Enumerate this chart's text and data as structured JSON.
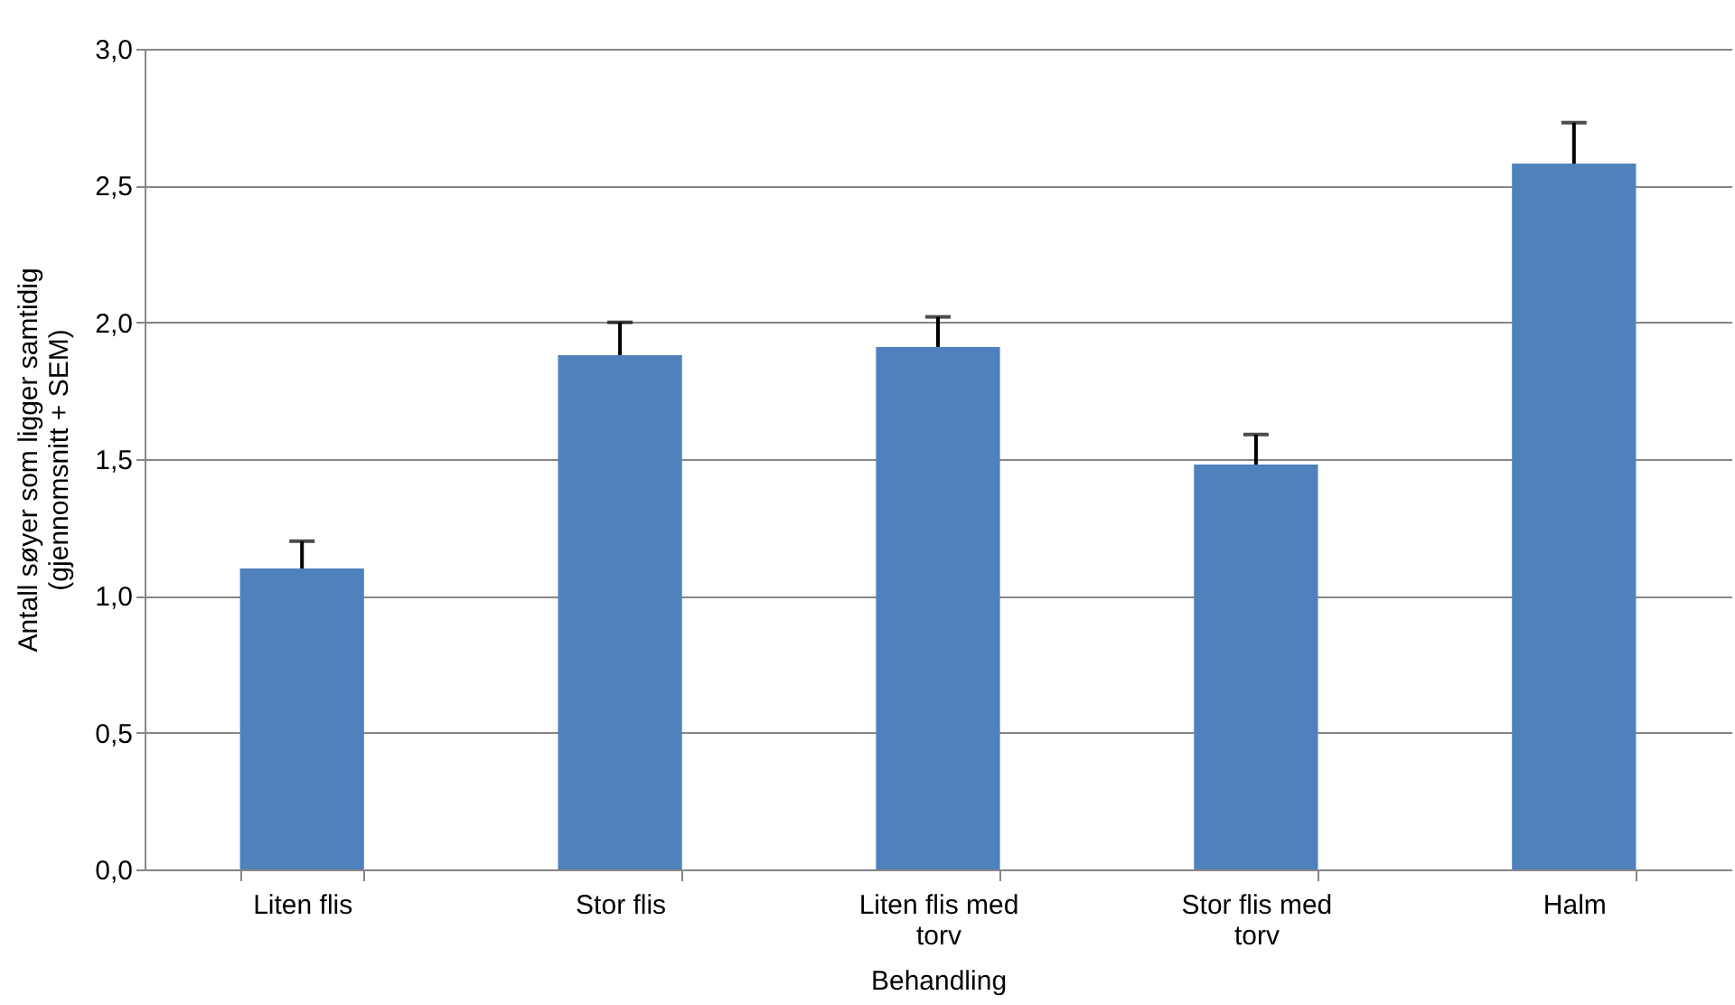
{
  "chart_data": {
    "type": "bar",
    "xlabel": "Behandling",
    "ylabel": "Antall søyer som ligger samtidig (gjennomsnitt + SEM)",
    "categories": [
      "Liten flis",
      "Stor flis",
      "Liten flis med torv",
      "Stor flis med torv",
      "Halm"
    ],
    "values": [
      1.1,
      1.88,
      1.91,
      1.48,
      2.58
    ],
    "errors": [
      [
        1.1,
        1.2
      ],
      [
        1.88,
        2.0
      ],
      [
        1.91,
        2.02
      ],
      [
        1.48,
        1.59
      ],
      [
        2.58,
        2.73
      ]
    ],
    "color": "#4f81bd",
    "ylim": [
      0,
      3
    ],
    "yticks": [
      {
        "value": 0,
        "label": "0,0"
      },
      {
        "value": 0.5,
        "label": "0,5"
      },
      {
        "value": 1,
        "label": "1,0"
      },
      {
        "value": 1.5,
        "label": "1,5"
      },
      {
        "value": 2,
        "label": "2,0"
      },
      {
        "value": 2.5,
        "label": "2,5"
      },
      {
        "value": 3,
        "label": "3,0"
      }
    ],
    "grid": "y"
  }
}
